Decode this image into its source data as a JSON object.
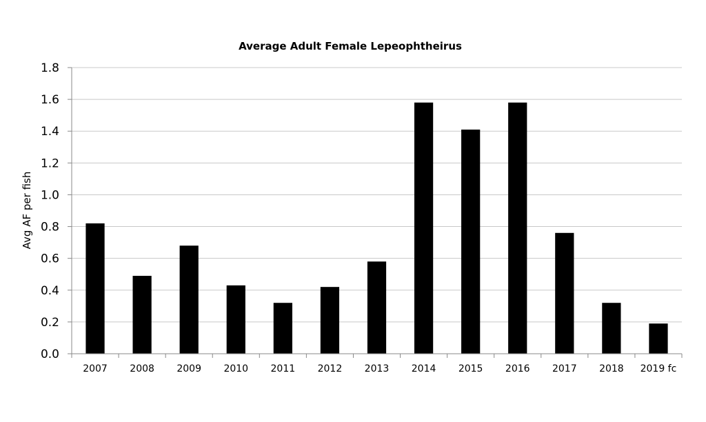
{
  "chart_data": {
    "type": "bar",
    "title": "Average Adult Female Lepeophtheirus",
    "xlabel": "",
    "ylabel": "Avg AF per fish",
    "ylim": [
      0,
      1.8
    ],
    "yticks": [
      "0.0",
      "0.2",
      "0.4",
      "0.6",
      "0.8",
      "1.0",
      "1.2",
      "1.4",
      "1.6",
      "1.8"
    ],
    "grid": true,
    "legend": "none",
    "bar_color": "#000000",
    "gridline_color": "#c8c8c8",
    "categories": [
      "2007",
      "2008",
      "2009",
      "2010",
      "2011",
      "2012",
      "2013",
      "2014",
      "2015",
      "2016",
      "2017",
      "2018",
      "2019 fc"
    ],
    "values": [
      0.82,
      0.49,
      0.68,
      0.43,
      0.32,
      0.42,
      0.58,
      1.58,
      1.41,
      1.58,
      0.76,
      0.32,
      0.19
    ]
  }
}
